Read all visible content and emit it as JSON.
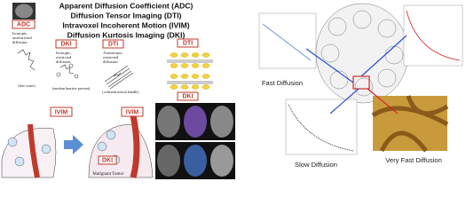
{
  "left_panel": {
    "title_lines": [
      "Apparent Diffusion Coefficient (ADC)",
      "Diffusion Tensor Imaging (DTI)",
      "Intravoxel Incoherent Motion (IVIM)",
      "Diffusion Kurtosis Imaging (DKI)"
    ],
    "boxes": [
      "ADC",
      "DKI",
      "DTI",
      "DTI",
      "DKI"
    ],
    "descriptions": [
      [
        "Isotropic,",
        "unrestricted",
        "diffusion"
      ],
      [
        "Isotropic,",
        "restricted",
        "diffusion"
      ],
      [
        "Anisotropic,",
        "restricted",
        "diffusion"
      ]
    ],
    "captions": [
      "(free water)",
      "(random barriers present)",
      "(coherent neural bundle)"
    ],
    "bottom_labels": [
      "IVIM",
      "IVIM",
      "DKI"
    ],
    "tumor_label": "Malignant Tumor"
  },
  "right_panel": {
    "labels": [
      "Fast Diffusion",
      "Slow Diffusion",
      "Very Fast Diffusion"
    ]
  }
}
